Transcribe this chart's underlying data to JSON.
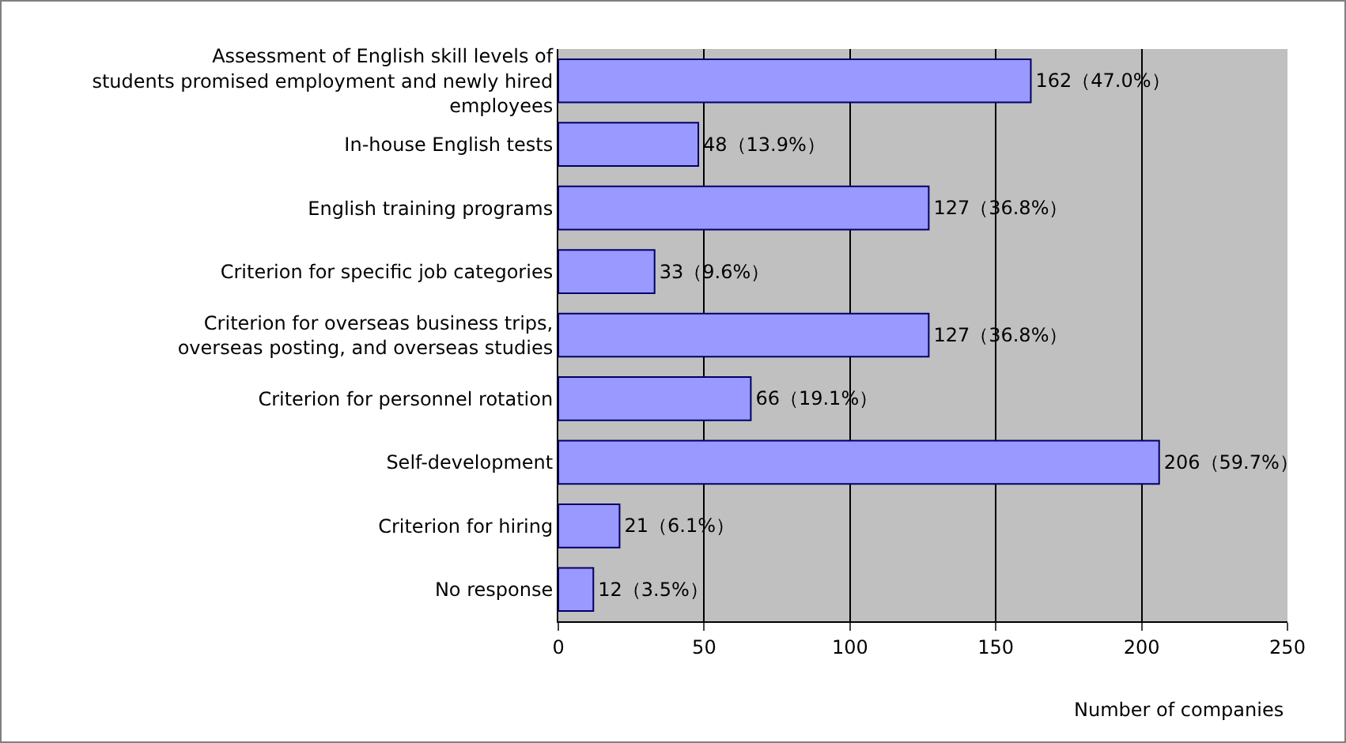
{
  "chart_data": {
    "type": "bar",
    "orientation": "horizontal",
    "categories": [
      "Assessment of English skill levels of students promised employment and newly hired employees",
      "In-house English tests",
      "English training programs",
      "Criterion for specific job categories",
      "Criterion for overseas business trips, overseas posting, and overseas studies",
      "Criterion for personnel rotation",
      "Self-development",
      "Criterion for hiring",
      "No response"
    ],
    "values": [
      162,
      48,
      127,
      33,
      127,
      66,
      206,
      21,
      12
    ],
    "value_labels": [
      "162（47.0%）",
      "48（13.9%）",
      "127（36.8%）",
      "33（9.6%）",
      "127（36.8%）",
      "66（19.1%）",
      "206（59.7%）",
      "21（6.1%）",
      "12（3.5%）"
    ],
    "color": "#9999ff",
    "xlabel": "Number of companies",
    "xlim": [
      0,
      250
    ],
    "xticks": [
      0,
      50,
      100,
      150,
      200,
      250
    ],
    "grid": "x"
  }
}
